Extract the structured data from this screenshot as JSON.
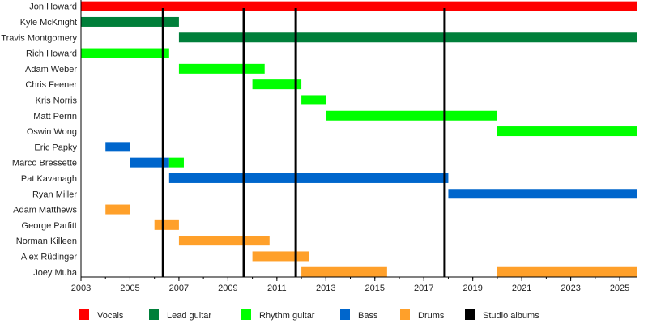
{
  "chart_data": {
    "type": "timeline",
    "xlim": [
      2003,
      2025.7
    ],
    "x_ticks": [
      2003,
      2005,
      2007,
      2009,
      2011,
      2013,
      2015,
      2017,
      2019,
      2021,
      2023,
      2025
    ],
    "legend_position": "bottom",
    "roles": [
      {
        "key": "vocals",
        "name": "Vocals",
        "color": "#ff0000"
      },
      {
        "key": "lead",
        "name": "Lead guitar",
        "color": "#007f3a"
      },
      {
        "key": "rhythm",
        "name": "Rhythm guitar",
        "color": "#00ff00"
      },
      {
        "key": "bass",
        "name": "Bass",
        "color": "#0066cc"
      },
      {
        "key": "drums",
        "name": "Drums",
        "color": "#ffa02a"
      },
      {
        "key": "albums",
        "name": "Studio albums",
        "color": "#000000"
      }
    ],
    "members": [
      {
        "name": "Jon Howard",
        "spans": [
          {
            "role": "vocals",
            "start": 2003,
            "end": 2025.7
          }
        ]
      },
      {
        "name": "Kyle McKnight",
        "spans": [
          {
            "role": "lead",
            "start": 2003,
            "end": 2007.0
          }
        ]
      },
      {
        "name": "Travis Montgomery",
        "spans": [
          {
            "role": "lead",
            "start": 2007.0,
            "end": 2025.7
          }
        ]
      },
      {
        "name": "Rich Howard",
        "spans": [
          {
            "role": "rhythm",
            "start": 2003,
            "end": 2006.6
          }
        ]
      },
      {
        "name": "Adam Weber",
        "spans": [
          {
            "role": "rhythm",
            "start": 2007.0,
            "end": 2010.5
          }
        ]
      },
      {
        "name": "Chris Feener",
        "spans": [
          {
            "role": "rhythm",
            "start": 2010.0,
            "end": 2012.0
          }
        ]
      },
      {
        "name": "Kris Norris",
        "spans": [
          {
            "role": "rhythm",
            "start": 2012.0,
            "end": 2013.0
          }
        ]
      },
      {
        "name": "Matt Perrin",
        "spans": [
          {
            "role": "rhythm",
            "start": 2013.0,
            "end": 2020.0
          }
        ]
      },
      {
        "name": "Oswin Wong",
        "spans": [
          {
            "role": "rhythm",
            "start": 2020.0,
            "end": 2025.7
          }
        ]
      },
      {
        "name": "Eric Papky",
        "spans": [
          {
            "role": "bass",
            "start": 2004.0,
            "end": 2005.0
          }
        ]
      },
      {
        "name": "Marco Bressette",
        "spans": [
          {
            "role": "bass",
            "start": 2005.0,
            "end": 2006.6
          },
          {
            "role": "rhythm",
            "start": 2006.6,
            "end": 2007.2
          }
        ]
      },
      {
        "name": "Pat Kavanagh",
        "spans": [
          {
            "role": "bass",
            "start": 2006.6,
            "end": 2018.0
          }
        ]
      },
      {
        "name": "Ryan Miller",
        "spans": [
          {
            "role": "bass",
            "start": 2018.0,
            "end": 2025.7
          }
        ]
      },
      {
        "name": "Adam Matthews",
        "spans": [
          {
            "role": "drums",
            "start": 2004.0,
            "end": 2005.0
          }
        ]
      },
      {
        "name": "George Parfitt",
        "spans": [
          {
            "role": "drums",
            "start": 2006.0,
            "end": 2007.0
          }
        ]
      },
      {
        "name": "Norman Killeen",
        "spans": [
          {
            "role": "drums",
            "start": 2007.0,
            "end": 2010.7
          }
        ]
      },
      {
        "name": "Alex Rüdinger",
        "spans": [
          {
            "role": "drums",
            "start": 2010.0,
            "end": 2012.3
          }
        ]
      },
      {
        "name": "Joey Muha",
        "spans": [
          {
            "role": "drums",
            "start": 2012.0,
            "end": 2015.5
          },
          {
            "role": "drums",
            "start": 2020.0,
            "end": 2025.7
          }
        ]
      }
    ],
    "studio_albums": [
      2006.35,
      2009.65,
      2011.77,
      2017.85
    ]
  }
}
